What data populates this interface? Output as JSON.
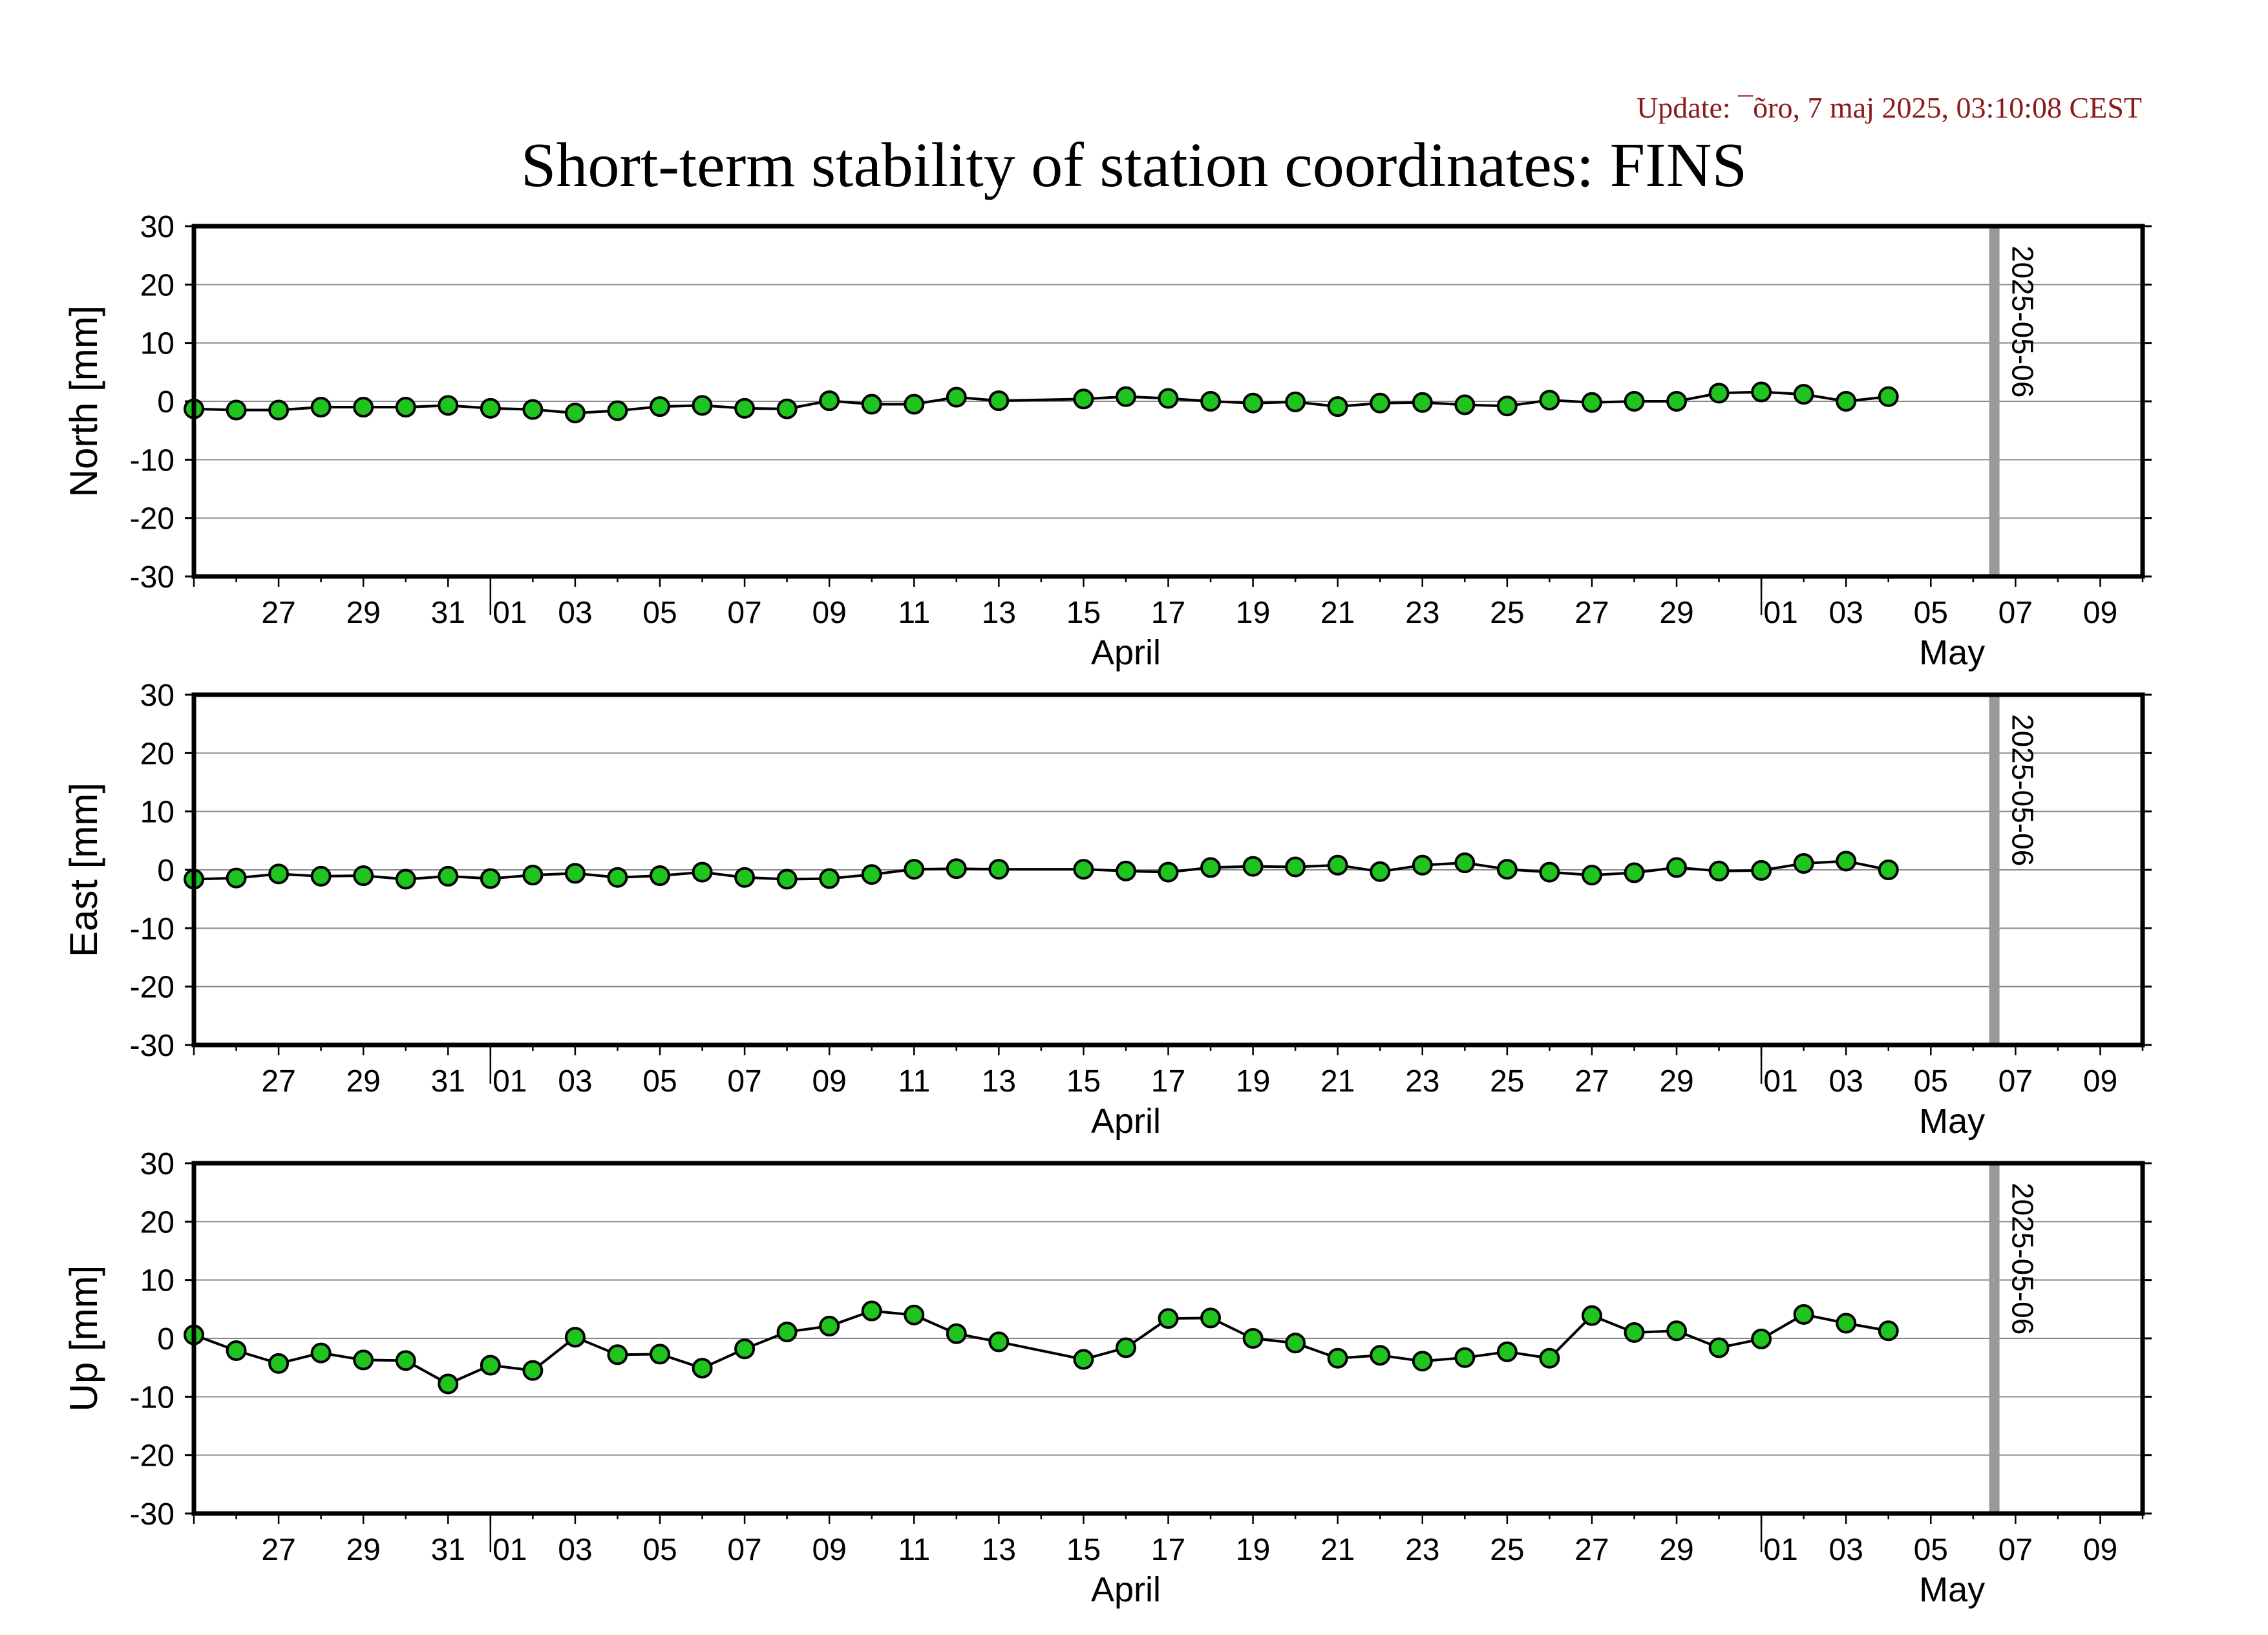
{
  "header": {
    "update": "Update: ¯õro, 7 maj 2025, 03:10:08 CEST",
    "title": "Short-term stability of station coordinates: FINS"
  },
  "colors": {
    "marker_fill": "#1fc41f",
    "marker_edge": "#000000",
    "line": "#000000",
    "marker_line": "#999999",
    "grid": "#888888",
    "update_text": "#8b1a1a"
  },
  "chart_data": [
    {
      "type": "line",
      "ylabel": "North [mm]",
      "ylim": [
        -30,
        30
      ],
      "yticks": [
        30,
        20,
        10,
        0,
        -10,
        -20,
        -30
      ],
      "xlim": [
        "2025-03-25",
        "2025-05-10"
      ],
      "x_tick_labels": [
        "27",
        "29",
        "31",
        "01",
        "03",
        "05",
        "07",
        "09",
        "11",
        "13",
        "15",
        "17",
        "19",
        "21",
        "23",
        "25",
        "27",
        "29",
        "01",
        "03",
        "05",
        "07",
        "09"
      ],
      "month_labels": [
        "April",
        "May"
      ],
      "grid": true,
      "marker_line": {
        "date": "2025-05-06",
        "label": "2025-05-06"
      },
      "x": [
        "2025-03-25",
        "2025-03-26",
        "2025-03-27",
        "2025-03-28",
        "2025-03-29",
        "2025-03-30",
        "2025-03-31",
        "2025-04-01",
        "2025-04-02",
        "2025-04-03",
        "2025-04-04",
        "2025-04-05",
        "2025-04-06",
        "2025-04-07",
        "2025-04-08",
        "2025-04-09",
        "2025-04-10",
        "2025-04-11",
        "2025-04-12",
        "2025-04-13",
        "2025-04-15",
        "2025-04-16",
        "2025-04-17",
        "2025-04-18",
        "2025-04-19",
        "2025-04-20",
        "2025-04-21",
        "2025-04-22",
        "2025-04-23",
        "2025-04-24",
        "2025-04-25",
        "2025-04-26",
        "2025-04-27",
        "2025-04-28",
        "2025-04-29",
        "2025-04-30",
        "2025-05-01",
        "2025-05-02",
        "2025-05-03",
        "2025-05-04"
      ],
      "values": [
        -1.3,
        -1.5,
        -1.5,
        -1.0,
        -1.0,
        -1.0,
        -0.7,
        -1.2,
        -1.4,
        -2.0,
        -1.6,
        -0.9,
        -0.7,
        -1.2,
        -1.3,
        0.1,
        -0.5,
        -0.5,
        0.7,
        0.1,
        0.4,
        0.8,
        0.5,
        0.0,
        -0.3,
        -0.1,
        -0.9,
        -0.3,
        -0.2,
        -0.6,
        -0.8,
        0.2,
        -0.2,
        0.0,
        0.0,
        1.4,
        1.6,
        1.2,
        0.0,
        0.8
      ]
    },
    {
      "type": "line",
      "ylabel": "East [mm]",
      "ylim": [
        -30,
        30
      ],
      "yticks": [
        30,
        20,
        10,
        0,
        -10,
        -20,
        -30
      ],
      "xlim": [
        "2025-03-25",
        "2025-05-10"
      ],
      "x_tick_labels": [
        "27",
        "29",
        "31",
        "01",
        "03",
        "05",
        "07",
        "09",
        "11",
        "13",
        "15",
        "17",
        "19",
        "21",
        "23",
        "25",
        "27",
        "29",
        "01",
        "03",
        "05",
        "07",
        "09"
      ],
      "month_labels": [
        "April",
        "May"
      ],
      "grid": true,
      "marker_line": {
        "date": "2025-05-06",
        "label": "2025-05-06"
      },
      "x": [
        "2025-03-25",
        "2025-03-26",
        "2025-03-27",
        "2025-03-28",
        "2025-03-29",
        "2025-03-30",
        "2025-03-31",
        "2025-04-01",
        "2025-04-02",
        "2025-04-03",
        "2025-04-04",
        "2025-04-05",
        "2025-04-06",
        "2025-04-07",
        "2025-04-08",
        "2025-04-09",
        "2025-04-10",
        "2025-04-11",
        "2025-04-12",
        "2025-04-13",
        "2025-04-15",
        "2025-04-16",
        "2025-04-17",
        "2025-04-18",
        "2025-04-19",
        "2025-04-20",
        "2025-04-21",
        "2025-04-22",
        "2025-04-23",
        "2025-04-24",
        "2025-04-25",
        "2025-04-26",
        "2025-04-27",
        "2025-04-28",
        "2025-04-29",
        "2025-04-30",
        "2025-05-01",
        "2025-05-02",
        "2025-05-03",
        "2025-05-04"
      ],
      "values": [
        -1.6,
        -1.4,
        -0.7,
        -1.1,
        -1.0,
        -1.6,
        -1.1,
        -1.5,
        -0.9,
        -0.6,
        -1.3,
        -1.0,
        -0.4,
        -1.3,
        -1.6,
        -1.5,
        -0.8,
        0.1,
        0.2,
        0.1,
        0.1,
        -0.2,
        -0.4,
        0.4,
        0.6,
        0.5,
        0.8,
        -0.3,
        0.8,
        1.2,
        0.1,
        -0.4,
        -0.9,
        -0.5,
        0.4,
        -0.2,
        -0.1,
        1.1,
        1.5,
        0.0
      ]
    },
    {
      "type": "line",
      "ylabel": "Up [mm]",
      "ylim": [
        -30,
        30
      ],
      "yticks": [
        30,
        20,
        10,
        0,
        -10,
        -20,
        -30
      ],
      "xlim": [
        "2025-03-25",
        "2025-05-10"
      ],
      "x_tick_labels": [
        "27",
        "29",
        "31",
        "01",
        "03",
        "05",
        "07",
        "09",
        "11",
        "13",
        "15",
        "17",
        "19",
        "21",
        "23",
        "25",
        "27",
        "29",
        "01",
        "03",
        "05",
        "07",
        "09"
      ],
      "month_labels": [
        "April",
        "May"
      ],
      "grid": true,
      "marker_line": {
        "date": "2025-05-06",
        "label": "2025-05-06"
      },
      "x": [
        "2025-03-25",
        "2025-03-26",
        "2025-03-27",
        "2025-03-28",
        "2025-03-29",
        "2025-03-30",
        "2025-03-31",
        "2025-04-01",
        "2025-04-02",
        "2025-04-03",
        "2025-04-04",
        "2025-04-05",
        "2025-04-06",
        "2025-04-07",
        "2025-04-08",
        "2025-04-09",
        "2025-04-10",
        "2025-04-11",
        "2025-04-12",
        "2025-04-13",
        "2025-04-15",
        "2025-04-16",
        "2025-04-17",
        "2025-04-18",
        "2025-04-19",
        "2025-04-20",
        "2025-04-21",
        "2025-04-22",
        "2025-04-23",
        "2025-04-24",
        "2025-04-25",
        "2025-04-26",
        "2025-04-27",
        "2025-04-28",
        "2025-04-29",
        "2025-04-30",
        "2025-05-01",
        "2025-05-02",
        "2025-05-03",
        "2025-05-04"
      ],
      "values": [
        0.6,
        -2.1,
        -4.3,
        -2.5,
        -3.7,
        -3.8,
        -7.8,
        -4.6,
        -5.5,
        0.2,
        -2.8,
        -2.7,
        -5.1,
        -1.8,
        1.1,
        2.1,
        4.7,
        4.0,
        0.8,
        -0.6,
        -3.6,
        -1.6,
        3.4,
        3.5,
        0.0,
        -0.8,
        -3.4,
        -2.9,
        -3.9,
        -3.3,
        -2.3,
        -3.4,
        3.9,
        1.0,
        1.3,
        -1.6,
        -0.1,
        4.1,
        2.6,
        1.3
      ]
    }
  ]
}
